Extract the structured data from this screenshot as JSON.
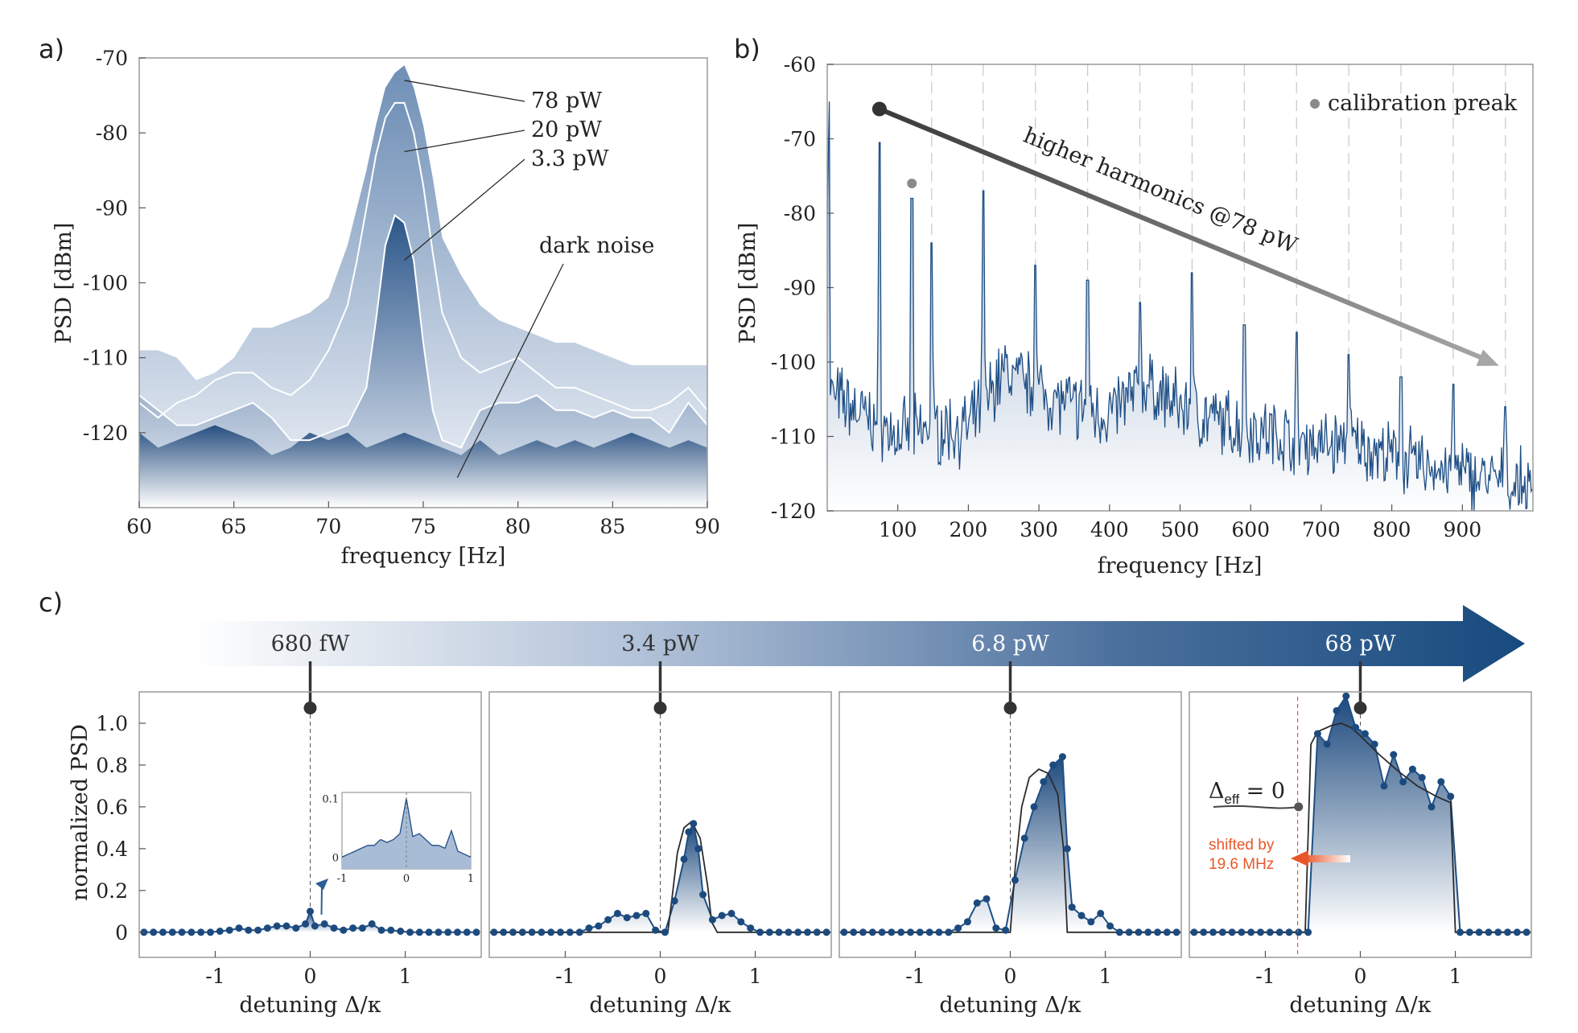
{
  "chart_data": [
    {
      "panel": "a)",
      "type": "area",
      "xlabel": "frequency [Hz]",
      "ylabel": "PSD  [dBm]",
      "xlim": [
        60,
        90
      ],
      "ylim": [
        -130,
        -70
      ],
      "xticks": [
        "60",
        "65",
        "70",
        "75",
        "80",
        "85",
        "90"
      ],
      "yticks": [
        "-70",
        "-80",
        "-90",
        "-100",
        "-110",
        "-120"
      ],
      "grid": false,
      "series": [
        {
          "name": "78 pW",
          "x": [
            60,
            61,
            62,
            63,
            64,
            65,
            66,
            67,
            68,
            69,
            70,
            71,
            71.5,
            72,
            72.5,
            73,
            73.5,
            74,
            74.5,
            75,
            75.5,
            76,
            77,
            78,
            79,
            80,
            81,
            82,
            83,
            84,
            85,
            86,
            87,
            88,
            89,
            90
          ],
          "y": [
            -109,
            -109,
            -110,
            -113,
            -112,
            -110,
            -106,
            -106,
            -105,
            -104,
            -102,
            -95,
            -90,
            -85,
            -79,
            -74,
            -72,
            -71,
            -74,
            -79,
            -86,
            -94,
            -99,
            -103,
            -105,
            -106,
            -107,
            -108,
            -108,
            -109,
            -110,
            -111,
            -111,
            -111,
            -111,
            -111
          ]
        },
        {
          "name": "20 pW",
          "x": [
            60,
            61,
            62,
            63,
            64,
            65,
            66,
            67,
            68,
            69,
            70,
            71,
            71.5,
            72,
            72.5,
            73,
            73.5,
            74,
            74.5,
            75,
            75.5,
            76,
            77,
            78,
            79,
            80,
            81,
            82,
            83,
            84,
            85,
            86,
            87,
            88,
            89,
            90
          ],
          "y": [
            -116,
            -118,
            -116,
            -115,
            -113,
            -112,
            -112,
            -114,
            -115,
            -113,
            -109,
            -103,
            -97,
            -90,
            -83,
            -78,
            -76,
            -76,
            -80,
            -87,
            -96,
            -104,
            -110,
            -112,
            -111,
            -110,
            -112,
            -114,
            -114,
            -115,
            -116,
            -117,
            -117,
            -116,
            -114,
            -117
          ]
        },
        {
          "name": "3.3 pW",
          "x": [
            60,
            61,
            62,
            63,
            64,
            65,
            66,
            67,
            68,
            69,
            70,
            71,
            72,
            72.5,
            73,
            73.5,
            74,
            74.5,
            75,
            75.5,
            76,
            77,
            78,
            79,
            80,
            81,
            82,
            83,
            84,
            85,
            86,
            87,
            88,
            89,
            90
          ],
          "y": [
            -115,
            -117,
            -119,
            -119,
            -118,
            -117,
            -116,
            -118,
            -121,
            -121,
            -120,
            -119,
            -114,
            -105,
            -95,
            -91,
            -92,
            -97,
            -108,
            -117,
            -121,
            -122,
            -117,
            -116,
            -116,
            -115,
            -117,
            -117,
            -118,
            -117,
            -118,
            -118,
            -120,
            -116,
            -119
          ]
        },
        {
          "name": "dark noise",
          "x": [
            60,
            61,
            62,
            63,
            64,
            65,
            66,
            67,
            68,
            69,
            70,
            71,
            72,
            73,
            74,
            75,
            76,
            77,
            78,
            79,
            80,
            81,
            82,
            83,
            84,
            85,
            86,
            87,
            88,
            89,
            90
          ],
          "y": [
            -120,
            -122,
            -121,
            -120,
            -119,
            -120,
            -121,
            -123,
            -122,
            -120,
            -121,
            -120,
            -122,
            -121,
            -120,
            -121,
            -122,
            -123,
            -121,
            -123,
            -122,
            -121,
            -122,
            -121,
            -122,
            -121,
            -120,
            -121,
            -122,
            -121,
            -122
          ]
        }
      ],
      "annotations": [
        "78 pW",
        "20 pW",
        "3.3 pW",
        "dark noise"
      ]
    },
    {
      "panel": "b)",
      "type": "area",
      "xlabel": "frequency [Hz]",
      "ylabel": "PSD  [dBm]",
      "xlim": [
        0,
        1000
      ],
      "ylim": [
        -120,
        -60
      ],
      "xticks": [
        "100",
        "200",
        "300",
        "400",
        "500",
        "600",
        "700",
        "800",
        "900"
      ],
      "yticks": [
        "-60",
        "-70",
        "-80",
        "-90",
        "-100",
        "-110",
        "-120"
      ],
      "legend": "calibration preak",
      "arrow_label": "higher harmonics @78 pW",
      "calibration_peak": {
        "x": 120,
        "y": -76
      },
      "harmonic_peaks": {
        "x": [
          74,
          148,
          221,
          295,
          369,
          443,
          517,
          591,
          665,
          739,
          813,
          887,
          961
        ],
        "y": [
          -70.5,
          -84,
          -77,
          -87,
          -89,
          -92,
          -88,
          -95,
          -96,
          -99,
          -102,
          -103,
          -106
        ]
      },
      "baseline": {
        "x": [
          0,
          50,
          100,
          150,
          200,
          250,
          300,
          350,
          400,
          450,
          500,
          550,
          600,
          650,
          700,
          750,
          800,
          850,
          900,
          950,
          1000
        ],
        "y": [
          -104,
          -107,
          -110,
          -109,
          -109,
          -101,
          -104,
          -106,
          -107,
          -103,
          -106,
          -108,
          -109,
          -110,
          -111,
          -111,
          -113,
          -114,
          -115,
          -116,
          -117
        ]
      }
    },
    {
      "panel": "c)",
      "type": "line",
      "power_labels": [
        "680 fW",
        "3.4 pW",
        "6.8 pW",
        "68 pW"
      ],
      "xlabel": "detuning Δ/κ",
      "ylabel": "normalized PSD",
      "xlim": [
        -1.8,
        1.8
      ],
      "ylim": [
        -0.12,
        1.15
      ],
      "xticks": [
        "-1",
        "0",
        "1"
      ],
      "yticks": [
        "0",
        "0.2",
        "0.4",
        "0.6",
        "0.8",
        "1.0"
      ],
      "subplots": [
        {
          "marker_x": 0,
          "points": {
            "x": [
              -1.75,
              -1.65,
              -1.55,
              -1.45,
              -1.35,
              -1.25,
              -1.15,
              -1.05,
              -0.95,
              -0.85,
              -0.75,
              -0.65,
              -0.55,
              -0.45,
              -0.35,
              -0.25,
              -0.15,
              -0.05,
              0.0,
              0.05,
              0.15,
              0.25,
              0.35,
              0.45,
              0.55,
              0.65,
              0.75,
              0.85,
              0.95,
              1.05,
              1.15,
              1.25,
              1.35,
              1.45,
              1.55,
              1.65,
              1.75
            ],
            "y": [
              0,
              0,
              0,
              0,
              0,
              0,
              0,
              0,
              0.005,
              0.01,
              0.02,
              0.01,
              0.01,
              0.02,
              0.03,
              0.03,
              0.02,
              0.04,
              0.1,
              0.03,
              0.04,
              0.02,
              0.01,
              0.02,
              0.02,
              0.04,
              0.01,
              0.01,
              0.005,
              0,
              0,
              0,
              0,
              0,
              0,
              0,
              0
            ]
          },
          "inset": {
            "xlim": [
              -1,
              1
            ],
            "ylim": [
              -0.02,
              0.11
            ],
            "xticks": [
              "-1",
              "0",
              "1"
            ],
            "yticks": [
              "0",
              "0.1"
            ],
            "points": {
              "x": [
                -1,
                -0.9,
                -0.8,
                -0.7,
                -0.6,
                -0.5,
                -0.4,
                -0.3,
                -0.2,
                -0.1,
                0,
                0.1,
                0.2,
                0.3,
                0.4,
                0.5,
                0.6,
                0.7,
                0.8,
                0.9,
                1
              ],
              "y": [
                0,
                0.005,
                0.01,
                0.015,
                0.02,
                0.02,
                0.03,
                0.025,
                0.03,
                0.04,
                0.1,
                0.035,
                0.04,
                0.03,
                0.02,
                0.02,
                0.015,
                0.045,
                0.01,
                0.005,
                0
              ]
            }
          }
        },
        {
          "marker_x": 0,
          "points": {
            "x": [
              -1.75,
              -1.65,
              -1.55,
              -1.45,
              -1.35,
              -1.25,
              -1.15,
              -1.05,
              -0.95,
              -0.85,
              -0.75,
              -0.65,
              -0.55,
              -0.45,
              -0.35,
              -0.25,
              -0.15,
              -0.05,
              0.05,
              0.15,
              0.25,
              0.3,
              0.35,
              0.4,
              0.45,
              0.55,
              0.65,
              0.75,
              0.85,
              0.95,
              1.05,
              1.15,
              1.25,
              1.35,
              1.45,
              1.55,
              1.65,
              1.75
            ],
            "y": [
              0,
              0,
              0,
              0,
              0,
              0,
              0,
              0,
              0,
              0,
              0.02,
              0.03,
              0.06,
              0.09,
              0.07,
              0.08,
              0.09,
              0.01,
              0.0,
              0.15,
              0.35,
              0.48,
              0.52,
              0.4,
              0.18,
              0.06,
              0.08,
              0.09,
              0.05,
              0.02,
              0,
              0,
              0,
              0,
              0,
              0,
              0,
              0
            ]
          },
          "fit": {
            "x": [
              -1.8,
              0.08,
              0.12,
              0.18,
              0.25,
              0.33,
              0.42,
              0.5,
              0.54,
              0.6,
              1.8
            ],
            "y": [
              0,
              0,
              0.15,
              0.38,
              0.5,
              0.53,
              0.45,
              0.22,
              0.05,
              0,
              0
            ]
          }
        },
        {
          "marker_x": 0,
          "points": {
            "x": [
              -1.75,
              -1.65,
              -1.55,
              -1.45,
              -1.35,
              -1.25,
              -1.15,
              -1.05,
              -0.95,
              -0.85,
              -0.75,
              -0.65,
              -0.55,
              -0.45,
              -0.35,
              -0.25,
              -0.15,
              -0.05,
              0.05,
              0.15,
              0.25,
              0.35,
              0.45,
              0.55,
              0.6,
              0.65,
              0.75,
              0.85,
              0.95,
              1.05,
              1.15,
              1.25,
              1.35,
              1.45,
              1.55,
              1.65,
              1.75
            ],
            "y": [
              0,
              0,
              0,
              0,
              0,
              0,
              0,
              0,
              0,
              0,
              0,
              0,
              0.02,
              0.05,
              0.14,
              0.16,
              0.02,
              0.01,
              0.25,
              0.45,
              0.6,
              0.72,
              0.8,
              0.84,
              0.4,
              0.12,
              0.08,
              0.05,
              0.09,
              0.03,
              0,
              0,
              0,
              0,
              0,
              0,
              0
            ]
          },
          "fit": {
            "x": [
              -1.8,
              0.0,
              0.05,
              0.12,
              0.2,
              0.3,
              0.4,
              0.5,
              0.56,
              0.6,
              1.8
            ],
            "y": [
              0,
              0,
              0.3,
              0.6,
              0.74,
              0.78,
              0.76,
              0.66,
              0.4,
              0,
              0
            ]
          }
        },
        {
          "marker_x": 0,
          "delta_label": "Δ",
          "delta_sub": "eff",
          "delta_tail": "= 0",
          "delta_point": {
            "x": -0.65,
            "y": 0.6
          },
          "shift_line_x": -0.66,
          "shift_text": [
            "shifted by",
            "19.6 MHz"
          ],
          "points": {
            "x": [
              -1.75,
              -1.65,
              -1.55,
              -1.45,
              -1.35,
              -1.25,
              -1.15,
              -1.05,
              -0.95,
              -0.85,
              -0.75,
              -0.65,
              -0.55,
              -0.45,
              -0.35,
              -0.25,
              -0.15,
              -0.05,
              0.05,
              0.15,
              0.25,
              0.35,
              0.45,
              0.55,
              0.65,
              0.75,
              0.85,
              0.95,
              1.05,
              1.15,
              1.25,
              1.35,
              1.45,
              1.55,
              1.65,
              1.75
            ],
            "y": [
              0,
              0,
              0,
              0,
              0,
              0,
              0,
              0,
              0,
              0,
              0,
              0,
              0,
              0.95,
              0.9,
              1.06,
              1.13,
              0.98,
              0.95,
              0.9,
              0.7,
              0.85,
              0.72,
              0.78,
              0.74,
              0.6,
              0.72,
              0.65,
              0,
              0,
              0,
              0,
              0,
              0,
              0,
              0
            ]
          },
          "fit": {
            "x": [
              -1.8,
              -0.58,
              -0.52,
              -0.45,
              -0.3,
              -0.2,
              -0.1,
              0.0,
              0.2,
              0.4,
              0.6,
              0.8,
              0.95,
              1.0,
              1.8
            ],
            "y": [
              0,
              0,
              0.9,
              0.96,
              0.99,
              1.0,
              0.98,
              0.94,
              0.85,
              0.77,
              0.7,
              0.65,
              0.62,
              0,
              0
            ]
          }
        }
      ]
    }
  ]
}
